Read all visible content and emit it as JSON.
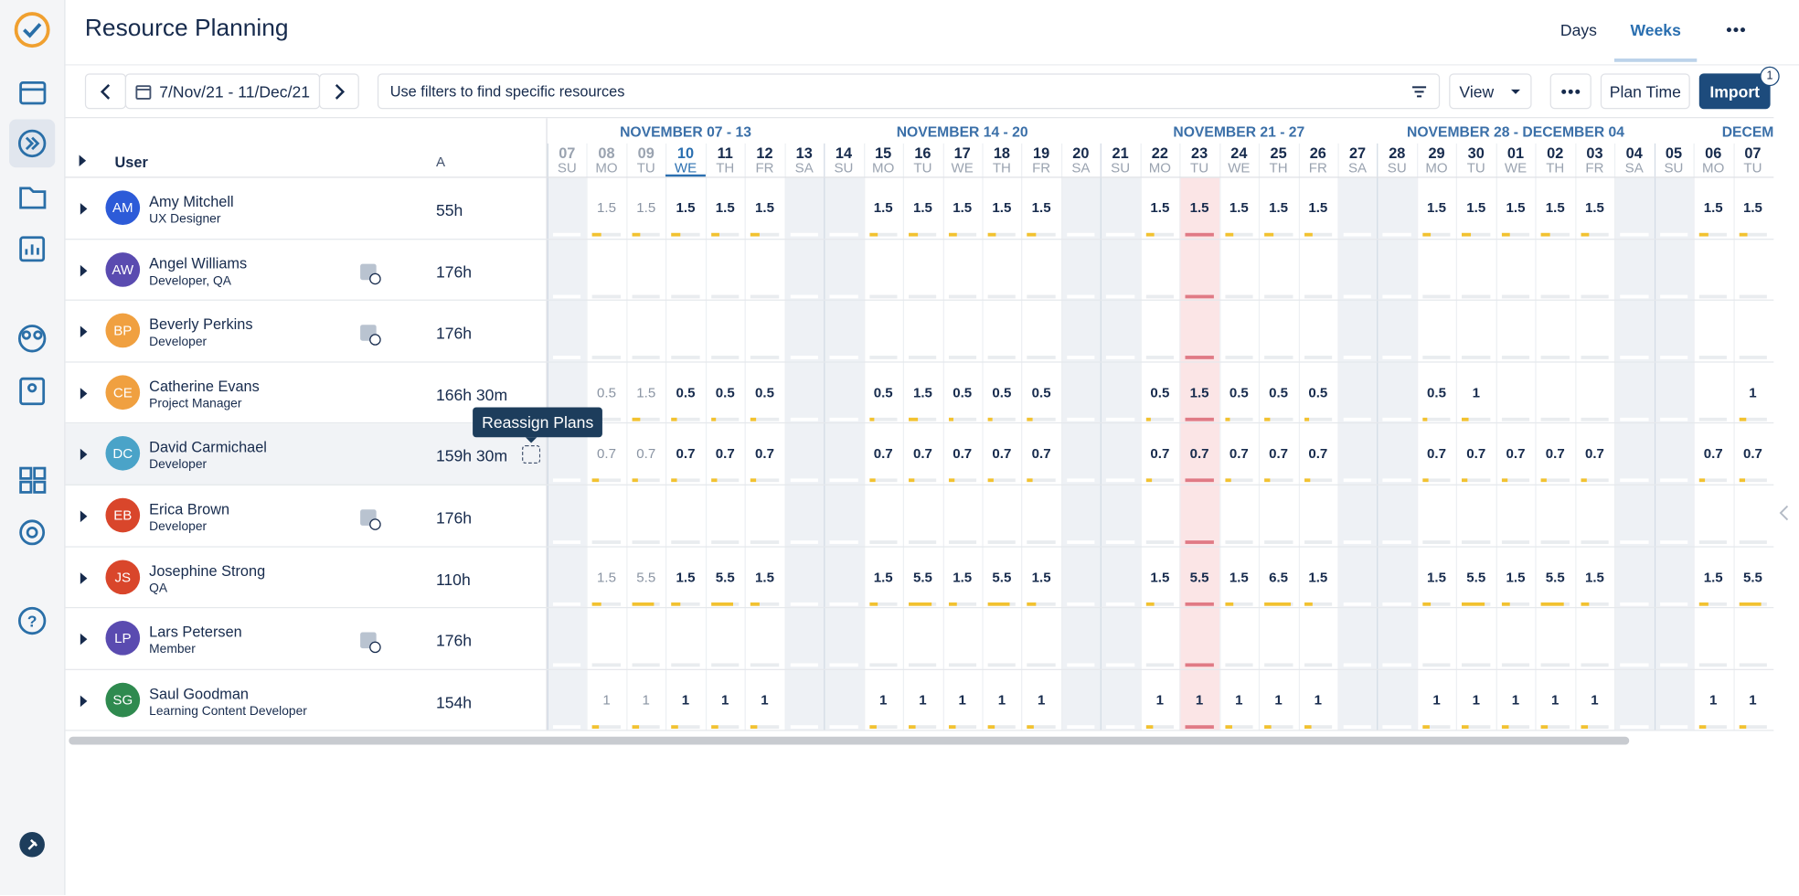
{
  "header": {
    "title": "Resource Planning",
    "tabs": [
      "Days",
      "Weeks"
    ]
  },
  "toolbar": {
    "date_range": "7/Nov/21 - 11/Dec/21",
    "filter_placeholder": "Use filters to find specific resources",
    "view": "View",
    "plan_time": "Plan Time",
    "import": "Import",
    "import_badge": "1"
  },
  "grid": {
    "columns": {
      "user": "User",
      "hours": "A"
    },
    "weeks": [
      "NOVEMBER 07 - 13",
      "NOVEMBER 14 - 20",
      "NOVEMBER 21 - 27",
      "NOVEMBER 28 - DECEMBER 04",
      "DECEM"
    ],
    "days": [
      {
        "date": "07",
        "weekday": "SU"
      },
      {
        "date": "08",
        "weekday": "MO"
      },
      {
        "date": "09",
        "weekday": "TU"
      },
      {
        "date": "10",
        "weekday": "WE"
      },
      {
        "date": "11",
        "weekday": "TH"
      },
      {
        "date": "12",
        "weekday": "FR"
      },
      {
        "date": "13",
        "weekday": "SA"
      },
      {
        "date": "14",
        "weekday": "SU"
      },
      {
        "date": "15",
        "weekday": "MO"
      },
      {
        "date": "16",
        "weekday": "TU"
      },
      {
        "date": "17",
        "weekday": "WE"
      },
      {
        "date": "18",
        "weekday": "TH"
      },
      {
        "date": "19",
        "weekday": "FR"
      },
      {
        "date": "20",
        "weekday": "SA"
      },
      {
        "date": "21",
        "weekday": "SU"
      },
      {
        "date": "22",
        "weekday": "MO"
      },
      {
        "date": "23",
        "weekday": "TU"
      },
      {
        "date": "24",
        "weekday": "WE"
      },
      {
        "date": "25",
        "weekday": "TH"
      },
      {
        "date": "26",
        "weekday": "FR"
      },
      {
        "date": "27",
        "weekday": "SA"
      },
      {
        "date": "28",
        "weekday": "SU"
      },
      {
        "date": "29",
        "weekday": "MO"
      },
      {
        "date": "30",
        "weekday": "TU"
      },
      {
        "date": "01",
        "weekday": "WE"
      },
      {
        "date": "02",
        "weekday": "TH"
      },
      {
        "date": "03",
        "weekday": "FR"
      },
      {
        "date": "04",
        "weekday": "SA"
      },
      {
        "date": "05",
        "weekday": "SU"
      },
      {
        "date": "06",
        "weekday": "MO"
      },
      {
        "date": "07",
        "weekday": "TU"
      }
    ],
    "rows": [
      {
        "initials": "AM",
        "name": "Amy Mitchell",
        "role": "UX Designer",
        "hours": "55h",
        "values": [
          null,
          1.5,
          1.5,
          1.5,
          1.5,
          1.5,
          null,
          null,
          1.5,
          1.5,
          1.5,
          1.5,
          1.5,
          null,
          null,
          1.5,
          1.5,
          1.5,
          1.5,
          1.5,
          null,
          null,
          1.5,
          1.5,
          1.5,
          1.5,
          1.5,
          null,
          null,
          1.5,
          1.5
        ]
      },
      {
        "initials": "AW",
        "name": "Angel Williams",
        "role": "Developer, QA",
        "hours": "176h",
        "values": [
          null,
          null,
          null,
          null,
          null,
          null,
          null,
          null,
          null,
          null,
          null,
          null,
          null,
          null,
          null,
          null,
          null,
          null,
          null,
          null,
          null,
          null,
          null,
          null,
          null,
          null,
          null,
          null,
          null,
          null,
          null
        ]
      },
      {
        "initials": "BP",
        "name": "Beverly Perkins",
        "role": "Developer",
        "hours": "176h",
        "values": [
          null,
          null,
          null,
          null,
          null,
          null,
          null,
          null,
          null,
          null,
          null,
          null,
          null,
          null,
          null,
          null,
          null,
          null,
          null,
          null,
          null,
          null,
          null,
          null,
          null,
          null,
          null,
          null,
          null,
          null,
          null
        ]
      },
      {
        "initials": "CE",
        "name": "Catherine Evans",
        "role": "Project Manager",
        "hours": "166h 30m",
        "values": [
          null,
          0.5,
          1.5,
          0.5,
          0.5,
          0.5,
          null,
          null,
          0.5,
          1.5,
          0.5,
          0.5,
          0.5,
          null,
          null,
          0.5,
          1.5,
          0.5,
          0.5,
          0.5,
          null,
          null,
          0.5,
          1,
          null,
          null,
          null,
          null,
          null,
          null,
          1
        ]
      },
      {
        "initials": "DC",
        "name": "David Carmichael",
        "role": "Developer",
        "hours": "159h 30m",
        "values": [
          null,
          0.7,
          0.7,
          0.7,
          0.7,
          0.7,
          null,
          null,
          0.7,
          0.7,
          0.7,
          0.7,
          0.7,
          null,
          null,
          0.7,
          0.7,
          0.7,
          0.7,
          0.7,
          null,
          null,
          0.7,
          0.7,
          0.7,
          0.7,
          0.7,
          null,
          null,
          0.7,
          0.7
        ]
      },
      {
        "initials": "EB",
        "name": "Erica Brown",
        "role": "Developer",
        "hours": "176h",
        "values": [
          null,
          null,
          null,
          null,
          null,
          null,
          null,
          null,
          null,
          null,
          null,
          null,
          null,
          null,
          null,
          null,
          null,
          null,
          null,
          null,
          null,
          null,
          null,
          null,
          null,
          null,
          null,
          null,
          null,
          null,
          null
        ]
      },
      {
        "initials": "JS",
        "name": "Josephine Strong",
        "role": "QA",
        "hours": "110h",
        "values": [
          null,
          1.5,
          5.5,
          1.5,
          5.5,
          1.5,
          null,
          null,
          1.5,
          5.5,
          1.5,
          5.5,
          1.5,
          null,
          null,
          1.5,
          5.5,
          1.5,
          6.5,
          1.5,
          null,
          null,
          1.5,
          5.5,
          1.5,
          5.5,
          1.5,
          null,
          null,
          1.5,
          5.5
        ]
      },
      {
        "initials": "LP",
        "name": "Lars Petersen",
        "role": "Member",
        "hours": "176h",
        "values": [
          null,
          null,
          null,
          null,
          null,
          null,
          null,
          null,
          null,
          null,
          null,
          null,
          null,
          null,
          null,
          null,
          null,
          null,
          null,
          null,
          null,
          null,
          null,
          null,
          null,
          null,
          null,
          null,
          null,
          null,
          null
        ]
      },
      {
        "initials": "SG",
        "name": "Saul Goodman",
        "role": "Learning Content Developer",
        "hours": "154h",
        "values": [
          null,
          1,
          1,
          1,
          1,
          1,
          null,
          null,
          1,
          1,
          1,
          1,
          1,
          null,
          null,
          1,
          1,
          1,
          1,
          1,
          null,
          null,
          1,
          1,
          1,
          1,
          1,
          null,
          null,
          1,
          1
        ]
      }
    ],
    "tooltip": "Reassign Plans"
  }
}
